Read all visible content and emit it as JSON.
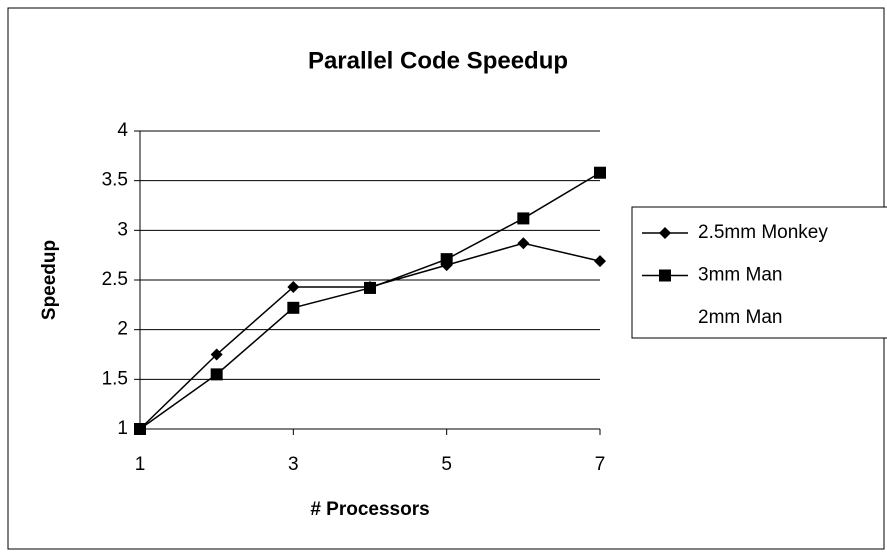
{
  "chart_data": {
    "type": "line",
    "title": "Parallel Code Speedup",
    "x_label": "# Processors",
    "y_label": "Speedup",
    "x": [
      1,
      2,
      3,
      4,
      5,
      6,
      7
    ],
    "series": [
      {
        "name": "2.5mm Monkey",
        "color": "#000000",
        "marker": "diamond",
        "values": [
          1,
          1.75,
          2.43,
          2.43,
          2.65,
          2.87,
          2.69
        ]
      },
      {
        "name": "3mm Man",
        "color": "#000000",
        "marker": "square",
        "values": [
          1,
          1.55,
          2.22,
          2.42,
          2.71,
          3.12,
          3.58
        ]
      },
      {
        "name": "2mm Man",
        "color": "#ffffff",
        "marker": "none",
        "values": [
          null,
          null,
          null,
          null,
          null,
          null,
          null
        ]
      }
    ],
    "xlim": [
      1,
      7
    ],
    "xticks": [
      1,
      3,
      5,
      7
    ],
    "ylim": [
      1,
      4
    ],
    "yticks": [
      1,
      1.5,
      2,
      2.5,
      3,
      3.5,
      4
    ],
    "grid": true,
    "legend": "right"
  }
}
